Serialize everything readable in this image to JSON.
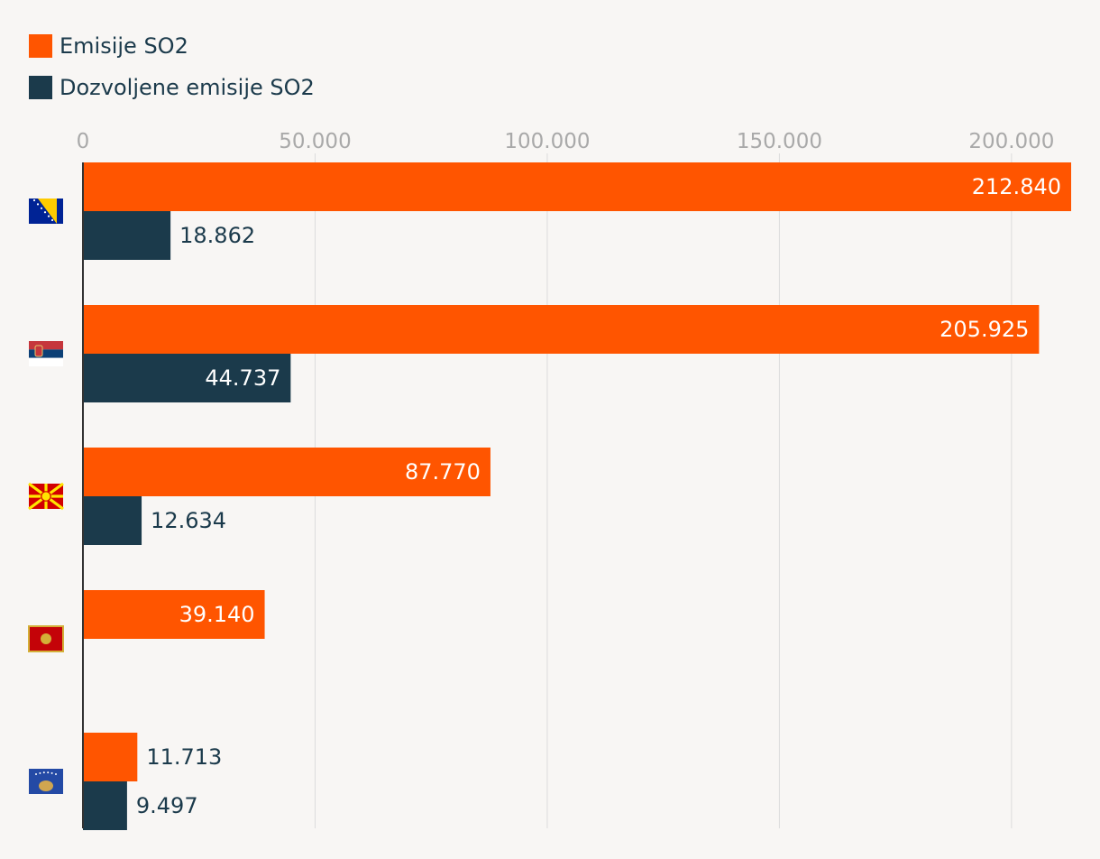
{
  "legend": [
    {
      "label": "Emisije SO2",
      "color": "#ff5500"
    },
    {
      "label": "Dozvoljene emisije SO2",
      "color": "#1b3a4b"
    }
  ],
  "chart_data": {
    "type": "bar",
    "orientation": "horizontal",
    "categories": [
      "Bosnia and Herzegovina flag",
      "Serbia flag",
      "North Macedonia flag",
      "Montenegro flag",
      "Kosovo flag"
    ],
    "category_icons": [
      "flag-bosnia-icon",
      "flag-serbia-icon",
      "flag-north-macedonia-icon",
      "flag-montenegro-icon",
      "flag-kosovo-icon"
    ],
    "series": [
      {
        "name": "Emisije SO2",
        "color": "#ff5500",
        "values": [
          212840,
          205925,
          87770,
          39140,
          11713
        ],
        "labels": [
          "212.840",
          "205.925",
          "87.770",
          "39.140",
          "11.713"
        ]
      },
      {
        "name": "Dozvoljene emisije SO2",
        "color": "#1b3a4b",
        "values": [
          18862,
          44737,
          12634,
          null,
          9497
        ],
        "labels": [
          "18.862",
          "44.737",
          "12.634",
          "",
          "9.497"
        ]
      }
    ],
    "x_ticks": [
      0,
      50000,
      100000,
      150000,
      200000
    ],
    "x_tick_labels": [
      "0",
      "50.000",
      "100.000",
      "150.000",
      "200.000"
    ],
    "xlim": [
      0,
      212840
    ],
    "grid": true,
    "legend_position": "top-left"
  }
}
